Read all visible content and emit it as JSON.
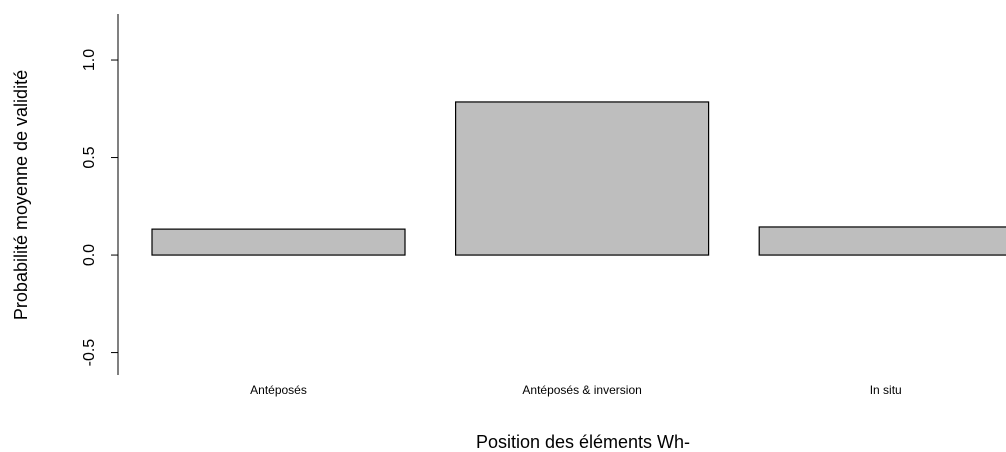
{
  "chart_data": {
    "type": "bar",
    "x_label": "Position des éléments Wh-",
    "y_label": "Probabilité moyenne de validité",
    "categories": [
      "Antéposés",
      "Antéposés & inversion",
      "In situ"
    ],
    "values": [
      0.133,
      0.785,
      0.144
    ],
    "color": "#bebebe",
    "ylim": [
      -0.615,
      1.236
    ],
    "yticks": [
      -0.5,
      {
        "value": 0,
        "label": "0.0"
      },
      0.5,
      {
        "value": 1,
        "label": "1.0"
      }
    ]
  }
}
